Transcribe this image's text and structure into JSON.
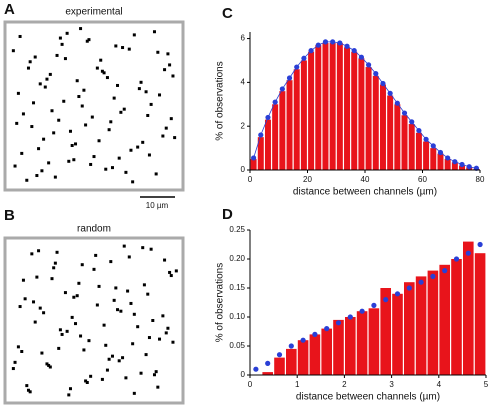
{
  "chart_data": [
    {
      "type": "scatter",
      "letter": "A",
      "title": "experimental",
      "color": "#000000",
      "xlim": [
        0,
        100
      ],
      "ylim": [
        0,
        100
      ],
      "scale_bar": "10 µm",
      "x": [
        3,
        8,
        12,
        17,
        22,
        27,
        31,
        36,
        41,
        46,
        50,
        55,
        60,
        64,
        69,
        74,
        79,
        84,
        88,
        93,
        97,
        5,
        10,
        15,
        20,
        25,
        30,
        35,
        40,
        45,
        52,
        57,
        62,
        67,
        72,
        77,
        82,
        86,
        91,
        95,
        2,
        7,
        14,
        19,
        24,
        29,
        34,
        39,
        44,
        48,
        54,
        59,
        63,
        68,
        73,
        78,
        83,
        89,
        94,
        98,
        4,
        11,
        16,
        21,
        26,
        33,
        38,
        43,
        47,
        53,
        58,
        61,
        66,
        71,
        76,
        81,
        87,
        92,
        96,
        6,
        13,
        18,
        23,
        28,
        32,
        37,
        42,
        49,
        56,
        65
      ],
      "y": [
        12,
        45,
        78,
        23,
        67,
        5,
        89,
        34,
        56,
        91,
        18,
        72,
        40,
        63,
        8,
        95,
        27,
        51,
        84,
        36,
        69,
        58,
        3,
        81,
        29,
        47,
        93,
        15,
        66,
        38,
        74,
        10,
        55,
        87,
        22,
        61,
        44,
        97,
        31,
        76,
        85,
        20,
        52,
        9,
        70,
        41,
        96,
        26,
        60,
        13,
        79,
        35,
        88,
        48,
        2,
        65,
        19,
        57,
        83,
        30,
        39,
        74,
        6,
        62,
        33,
        80,
        16,
        50,
        92,
        28,
        68,
        11,
        46,
        86,
        24,
        59,
        7,
        73,
        42,
        94,
        37,
        64,
        14,
        82,
        53,
        25,
        99,
        43,
        71,
        17
      ]
    },
    {
      "type": "scatter",
      "letter": "B",
      "title": "random",
      "color": "#000000",
      "xlim": [
        0,
        100
      ],
      "ylim": [
        0,
        100
      ],
      "x": [
        12,
        45,
        78,
        23,
        67,
        5,
        89,
        34,
        56,
        91,
        18,
        72,
        40,
        63,
        8,
        95,
        27,
        51,
        84,
        36,
        69,
        58,
        3,
        81,
        29,
        47,
        93,
        15,
        66,
        38,
        74,
        10,
        55,
        87,
        22,
        61,
        44,
        97,
        31,
        76,
        85,
        20,
        52,
        9,
        70,
        41,
        96,
        26,
        60,
        13,
        79,
        35,
        88,
        48,
        2,
        65,
        19,
        57,
        83,
        30,
        39,
        74,
        6,
        62,
        33,
        80,
        16,
        50,
        92,
        28,
        68,
        11,
        46,
        86,
        24,
        59,
        7,
        73,
        42,
        94,
        37,
        64,
        14,
        82,
        53,
        25,
        99,
        43,
        71,
        17
      ],
      "y": [
        4,
        11,
        16,
        21,
        26,
        33,
        38,
        43,
        47,
        53,
        58,
        61,
        66,
        71,
        76,
        81,
        87,
        92,
        96,
        6,
        13,
        18,
        23,
        28,
        32,
        37,
        42,
        49,
        56,
        65,
        3,
        8,
        12,
        17,
        22,
        27,
        31,
        36,
        41,
        46,
        50,
        55,
        60,
        64,
        69,
        74,
        79,
        84,
        88,
        93,
        97,
        2,
        7,
        14,
        19,
        24,
        29,
        34,
        39,
        44,
        48,
        54,
        59,
        63,
        68,
        73,
        78,
        83,
        89,
        94,
        98,
        5,
        10,
        15,
        20,
        25,
        30,
        35,
        40,
        45,
        52,
        57,
        62,
        67,
        72,
        77,
        82,
        86,
        91,
        95
      ]
    },
    {
      "type": "histogram",
      "letter": "C",
      "xlabel": "distance between channels (µm)",
      "ylabel": "% of observations",
      "color": "#e8141b",
      "bins": [
        0,
        2.5,
        5,
        7.5,
        10,
        12.5,
        15,
        17.5,
        20,
        22.5,
        25,
        27.5,
        30,
        32.5,
        35,
        37.5,
        40,
        42.5,
        45,
        47.5,
        50,
        52.5,
        55,
        57.5,
        60,
        62.5,
        65,
        67.5,
        70,
        72.5,
        75,
        77.5,
        80
      ],
      "values": [
        0.5,
        1.5,
        2.3,
        3.0,
        3.6,
        4.1,
        4.6,
        5.0,
        5.4,
        5.7,
        5.8,
        5.8,
        5.8,
        5.6,
        5.4,
        5.1,
        4.7,
        4.3,
        3.9,
        3.4,
        3.0,
        2.5,
        2.1,
        1.7,
        1.3,
        1.0,
        0.75,
        0.5,
        0.35,
        0.2,
        0.12,
        0.05
      ],
      "overlay": {
        "color": "#2a3fd6",
        "line": true,
        "x": [
          1.25,
          3.75,
          6.25,
          8.75,
          11.25,
          13.75,
          16.25,
          18.75,
          21.25,
          23.75,
          26.25,
          28.75,
          31.25,
          33.75,
          36.25,
          38.75,
          41.25,
          43.75,
          46.25,
          48.75,
          51.25,
          53.75,
          56.25,
          58.75,
          61.25,
          63.75,
          66.25,
          68.75,
          71.25,
          73.75,
          76.25,
          78.75
        ],
        "values": [
          0.55,
          1.6,
          2.4,
          3.1,
          3.7,
          4.2,
          4.7,
          5.1,
          5.45,
          5.7,
          5.85,
          5.85,
          5.8,
          5.65,
          5.45,
          5.15,
          4.8,
          4.4,
          3.95,
          3.5,
          3.05,
          2.6,
          2.2,
          1.8,
          1.4,
          1.1,
          0.8,
          0.55,
          0.38,
          0.25,
          0.15,
          0.08
        ]
      },
      "xlim": [
        0,
        80
      ],
      "xticks": [
        0,
        20,
        40,
        60,
        80
      ],
      "ylim": [
        0,
        6.3
      ],
      "yticks": [
        0,
        2,
        4,
        6
      ]
    },
    {
      "type": "histogram",
      "letter": "D",
      "xlabel": "distance between channels (µm)",
      "ylabel": "% of observations",
      "color": "#e8141b",
      "bins": [
        0,
        0.25,
        0.5,
        0.75,
        1,
        1.25,
        1.5,
        1.75,
        2,
        2.25,
        2.5,
        2.75,
        3,
        3.25,
        3.5,
        3.75,
        4,
        4.25,
        4.5,
        4.75,
        5
      ],
      "values": [
        0,
        0.005,
        0.03,
        0.045,
        0.06,
        0.07,
        0.08,
        0.095,
        0.1,
        0.11,
        0.115,
        0.15,
        0.14,
        0.16,
        0.17,
        0.18,
        0.19,
        0.2,
        0.23,
        0.21
      ],
      "overlay": {
        "color": "#2a3fd6",
        "line": false,
        "x": [
          0.125,
          0.375,
          0.625,
          0.875,
          1.125,
          1.375,
          1.625,
          1.875,
          2.125,
          2.375,
          2.625,
          2.875,
          3.125,
          3.375,
          3.625,
          3.875,
          4.125,
          4.375,
          4.625,
          4.875
        ],
        "values": [
          0.01,
          0.02,
          0.035,
          0.05,
          0.06,
          0.07,
          0.08,
          0.09,
          0.1,
          0.11,
          0.12,
          0.13,
          0.14,
          0.15,
          0.16,
          0.17,
          0.18,
          0.2,
          0.21,
          0.225
        ]
      },
      "xlim": [
        0,
        5
      ],
      "xticks": [
        0,
        1,
        2,
        3,
        4,
        5
      ],
      "ylim": [
        0,
        0.25
      ],
      "yticks": [
        0,
        0.05,
        {
          "value": 0.1,
          "label": "0.10"
        },
        0.15,
        {
          "value": 0.2,
          "label": "0.20"
        },
        0.25
      ]
    }
  ]
}
